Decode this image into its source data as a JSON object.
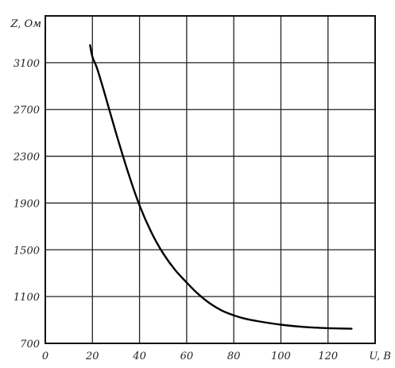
{
  "chart_data": {
    "type": "line",
    "title": "",
    "xlabel": "U, B",
    "ylabel": "Z, Ом",
    "xlim": [
      0,
      140
    ],
    "ylim": [
      700,
      3500
    ],
    "x_ticks": [
      0,
      20,
      40,
      60,
      80,
      100,
      120
    ],
    "x_tick_labels": [
      "0",
      "20",
      "40",
      "60",
      "80",
      "100",
      "120"
    ],
    "y_ticks": [
      700,
      1100,
      1500,
      1900,
      2300,
      2700,
      3100
    ],
    "y_tick_labels": [
      "700",
      "1100",
      "1500",
      "1900",
      "2300",
      "2700",
      "3100"
    ],
    "grid": true,
    "series": [
      {
        "x": [
          19,
          20,
          22,
          25,
          30,
          35,
          40,
          45,
          50,
          55,
          60,
          65,
          70,
          75,
          80,
          85,
          90,
          100,
          110,
          120,
          130
        ],
        "values": [
          3250,
          3150,
          3050,
          2850,
          2500,
          2170,
          1880,
          1650,
          1470,
          1330,
          1220,
          1120,
          1040,
          980,
          940,
          910,
          890,
          860,
          840,
          830,
          825
        ]
      }
    ]
  }
}
